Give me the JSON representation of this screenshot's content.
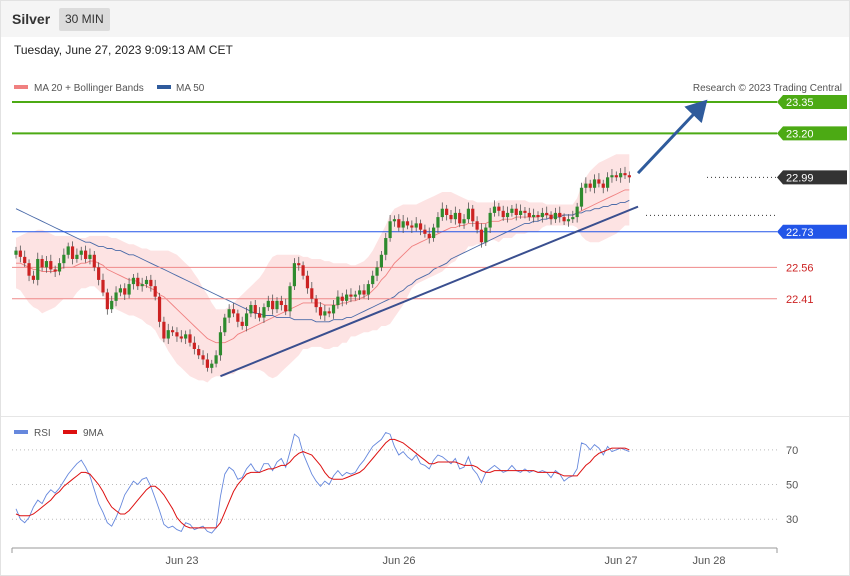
{
  "header": {
    "symbol": "Silver",
    "timeframe": "30 MIN",
    "datetime": "Tuesday, June 27, 2023 9:09:13 AM CET"
  },
  "colors": {
    "green_level": "#4caa14",
    "current_price": "#333333",
    "pivot": "#2255e8",
    "support": "#cc2222",
    "arrow": "#2f5b9c",
    "trendline": "#3a4f8f",
    "bollinger_fill": "#fde3e3",
    "ma20": "#f08080",
    "ma50": "#4a6aa8",
    "candle_up": "#2e8b2e",
    "candle_down": "#cc2222",
    "rsi": "#6688dd",
    "rsi_ma": "#dd1111"
  },
  "chart_data": [
    {
      "type": "candlestick",
      "title": "Silver",
      "legend": [
        {
          "name": "MA 20 + Bollinger Bands",
          "color": "#f08080"
        },
        {
          "name": "MA 50",
          "color": "#2f5b9c"
        }
      ],
      "legend_position": "top-left",
      "copyright": "Research © 2023 Trading Central",
      "ylim": [
        21.85,
        23.45
      ],
      "x_ticks": [
        "Jun 23",
        "Jun 26",
        "Jun 27",
        "Jun 28"
      ],
      "levels": [
        {
          "label": "23.35",
          "value": 23.35,
          "style": "green"
        },
        {
          "label": "23.20",
          "value": 23.2,
          "style": "green"
        },
        {
          "label": "22.99",
          "value": 22.99,
          "style": "current"
        },
        {
          "label": "22.73",
          "value": 22.73,
          "style": "pivot"
        },
        {
          "label": "22.56",
          "value": 22.56,
          "style": "support"
        },
        {
          "label": "22.41",
          "value": 22.41,
          "style": "support"
        }
      ],
      "close": [
        22.64,
        22.61,
        22.58,
        22.52,
        22.5,
        22.6,
        22.56,
        22.59,
        22.55,
        22.54,
        22.58,
        22.62,
        22.66,
        22.6,
        22.62,
        22.64,
        22.6,
        22.62,
        22.56,
        22.5,
        22.44,
        22.36,
        22.4,
        22.44,
        22.46,
        22.43,
        22.48,
        22.51,
        22.47,
        22.48,
        22.5,
        22.47,
        22.42,
        22.3,
        22.22,
        22.26,
        22.25,
        22.23,
        22.22,
        22.24,
        22.2,
        22.17,
        22.14,
        22.12,
        22.08,
        22.1,
        22.14,
        22.25,
        22.32,
        22.36,
        22.34,
        22.3,
        22.28,
        22.34,
        22.38,
        22.34,
        22.32,
        22.37,
        22.4,
        22.36,
        22.4,
        22.38,
        22.35,
        22.47,
        22.58,
        22.57,
        22.52,
        22.46,
        22.41,
        22.37,
        22.33,
        22.35,
        22.34,
        22.38,
        22.42,
        22.4,
        22.43,
        22.42,
        22.43,
        22.45,
        22.43,
        22.48,
        22.52,
        22.56,
        22.62,
        22.7,
        22.78,
        22.79,
        22.75,
        22.78,
        22.76,
        22.75,
        22.77,
        22.74,
        22.72,
        22.7,
        22.75,
        22.8,
        22.84,
        22.81,
        22.79,
        22.82,
        22.77,
        22.79,
        22.84,
        22.78,
        22.74,
        22.68,
        22.75,
        22.82,
        22.85,
        22.83,
        22.8,
        22.82,
        22.84,
        22.81,
        22.83,
        22.82,
        22.8,
        22.81,
        22.8,
        22.82,
        22.81,
        22.79,
        22.82,
        22.8,
        22.78,
        22.79,
        22.8,
        22.85,
        22.94,
        22.96,
        22.94,
        22.98,
        22.96,
        22.94,
        22.99,
        23.0,
        22.99,
        23.01,
        23.0,
        22.99
      ],
      "ma20": [
        22.58,
        22.58,
        22.57,
        22.56,
        22.55,
        22.55,
        22.54,
        22.54,
        22.54,
        22.54,
        22.55,
        22.56,
        22.56,
        22.56,
        22.57,
        22.58,
        22.58,
        22.59,
        22.59,
        22.58,
        22.57,
        22.55,
        22.54,
        22.53,
        22.52,
        22.51,
        22.5,
        22.5,
        22.49,
        22.48,
        22.47,
        22.46,
        22.45,
        22.43,
        22.42,
        22.4,
        22.38,
        22.36,
        22.34,
        22.32,
        22.3,
        22.28,
        22.26,
        22.24,
        22.22,
        22.21,
        22.2,
        22.2,
        22.2,
        22.21,
        22.22,
        22.24,
        22.25,
        22.26,
        22.27,
        22.28,
        22.29,
        22.3,
        22.31,
        22.32,
        22.33,
        22.34,
        22.35,
        22.36,
        22.37,
        22.38,
        22.39,
        22.39,
        22.39,
        22.39,
        22.39,
        22.38,
        22.38,
        22.38,
        22.38,
        22.39,
        22.39,
        22.4,
        22.4,
        22.41,
        22.42,
        22.43,
        22.45,
        22.47,
        22.5,
        22.52,
        22.55,
        22.58,
        22.6,
        22.62,
        22.64,
        22.66,
        22.67,
        22.68,
        22.69,
        22.7,
        22.71,
        22.72,
        22.73,
        22.74,
        22.75,
        22.75,
        22.76,
        22.76,
        22.77,
        22.77,
        22.77,
        22.77,
        22.77,
        22.78,
        22.78,
        22.78,
        22.79,
        22.79,
        22.79,
        22.8,
        22.8,
        22.8,
        22.8,
        22.8,
        22.8,
        22.81,
        22.81,
        22.81,
        22.81,
        22.81,
        22.81,
        22.81,
        22.81,
        22.82,
        22.83,
        22.84,
        22.85,
        22.86,
        22.87,
        22.88,
        22.89,
        22.9,
        22.91,
        22.92,
        22.93,
        22.93
      ],
      "bb_upper": [
        22.7,
        22.71,
        22.72,
        22.73,
        22.73,
        22.74,
        22.74,
        22.73,
        22.72,
        22.71,
        22.71,
        22.71,
        22.71,
        22.71,
        22.7,
        22.7,
        22.7,
        22.71,
        22.71,
        22.71,
        22.71,
        22.71,
        22.7,
        22.7,
        22.69,
        22.68,
        22.67,
        22.67,
        22.66,
        22.65,
        22.65,
        22.64,
        22.64,
        22.64,
        22.64,
        22.64,
        22.63,
        22.62,
        22.6,
        22.58,
        22.56,
        22.53,
        22.5,
        22.46,
        22.43,
        22.39,
        22.36,
        22.36,
        22.36,
        22.37,
        22.39,
        22.41,
        22.43,
        22.45,
        22.47,
        22.49,
        22.51,
        22.54,
        22.58,
        22.61,
        22.62,
        22.62,
        22.62,
        22.62,
        22.62,
        22.62,
        22.61,
        22.61,
        22.6,
        22.6,
        22.6,
        22.59,
        22.59,
        22.58,
        22.58,
        22.58,
        22.58,
        22.57,
        22.57,
        22.58,
        22.59,
        22.61,
        22.64,
        22.68,
        22.72,
        22.76,
        22.81,
        22.84,
        22.85,
        22.86,
        22.86,
        22.86,
        22.86,
        22.87,
        22.88,
        22.89,
        22.9,
        22.91,
        22.92,
        22.92,
        22.92,
        22.91,
        22.9,
        22.89,
        22.88,
        22.88,
        22.87,
        22.87,
        22.87,
        22.87,
        22.87,
        22.88,
        22.88,
        22.88,
        22.88,
        22.88,
        22.88,
        22.88,
        22.87,
        22.87,
        22.87,
        22.87,
        22.86,
        22.86,
        22.86,
        22.86,
        22.86,
        22.86,
        22.86,
        22.89,
        22.95,
        22.99,
        23.02,
        23.04,
        23.06,
        23.07,
        23.08,
        23.09,
        23.1,
        23.1,
        23.1,
        23.1
      ],
      "bb_lower": [
        22.46,
        22.45,
        22.42,
        22.39,
        22.37,
        22.36,
        22.34,
        22.35,
        22.36,
        22.37,
        22.39,
        22.41,
        22.41,
        22.41,
        22.44,
        22.46,
        22.46,
        22.47,
        22.47,
        22.45,
        22.43,
        22.39,
        22.38,
        22.36,
        22.35,
        22.34,
        22.33,
        22.33,
        22.32,
        22.31,
        22.29,
        22.28,
        22.26,
        22.22,
        22.2,
        22.16,
        22.13,
        22.1,
        22.08,
        22.06,
        22.04,
        22.03,
        22.02,
        22.02,
        22.01,
        22.03,
        22.04,
        22.04,
        22.04,
        22.05,
        22.05,
        22.07,
        22.07,
        22.07,
        22.07,
        22.07,
        22.07,
        22.06,
        22.04,
        22.03,
        22.04,
        22.06,
        22.08,
        22.1,
        22.12,
        22.14,
        22.17,
        22.17,
        22.18,
        22.18,
        22.18,
        22.17,
        22.17,
        22.18,
        22.18,
        22.2,
        22.2,
        22.23,
        22.23,
        22.24,
        22.25,
        22.25,
        22.26,
        22.26,
        22.28,
        22.28,
        22.29,
        22.32,
        22.35,
        22.38,
        22.42,
        22.46,
        22.48,
        22.49,
        22.5,
        22.51,
        22.52,
        22.53,
        22.54,
        22.56,
        22.58,
        22.59,
        22.62,
        22.63,
        22.66,
        22.66,
        22.67,
        22.67,
        22.67,
        22.69,
        22.69,
        22.68,
        22.7,
        22.7,
        22.7,
        22.72,
        22.72,
        22.72,
        22.73,
        22.73,
        22.73,
        22.75,
        22.76,
        22.76,
        22.76,
        22.76,
        22.76,
        22.76,
        22.76,
        22.75,
        22.71,
        22.69,
        22.68,
        22.68,
        22.68,
        22.69,
        22.7,
        22.71,
        22.72,
        22.74,
        22.76,
        22.76
      ],
      "ma50": [
        22.84,
        22.83,
        22.82,
        22.81,
        22.8,
        22.79,
        22.78,
        22.77,
        22.76,
        22.75,
        22.74,
        22.73,
        22.72,
        22.71,
        22.7,
        22.69,
        22.68,
        22.68,
        22.67,
        22.66,
        22.66,
        22.65,
        22.65,
        22.64,
        22.64,
        22.63,
        22.62,
        22.62,
        22.61,
        22.6,
        22.59,
        22.58,
        22.57,
        22.56,
        22.55,
        22.54,
        22.53,
        22.52,
        22.51,
        22.5,
        22.49,
        22.48,
        22.47,
        22.46,
        22.45,
        22.44,
        22.43,
        22.42,
        22.41,
        22.4,
        22.39,
        22.38,
        22.37,
        22.36,
        22.35,
        22.34,
        22.34,
        22.33,
        22.33,
        22.33,
        22.32,
        22.32,
        22.32,
        22.32,
        22.31,
        22.31,
        22.31,
        22.31,
        22.31,
        22.3,
        22.3,
        22.3,
        22.3,
        22.31,
        22.31,
        22.31,
        22.32,
        22.32,
        22.33,
        22.34,
        22.35,
        22.36,
        22.37,
        22.38,
        22.39,
        22.4,
        22.41,
        22.42,
        22.44,
        22.45,
        22.47,
        22.48,
        22.5,
        22.51,
        22.52,
        22.53,
        22.55,
        22.56,
        22.57,
        22.58,
        22.6,
        22.61,
        22.62,
        22.63,
        22.64,
        22.65,
        22.66,
        22.67,
        22.68,
        22.69,
        22.7,
        22.71,
        22.72,
        22.73,
        22.74,
        22.75,
        22.76,
        22.77,
        22.77,
        22.78,
        22.78,
        22.79,
        22.79,
        22.8,
        22.8,
        22.8,
        22.81,
        22.81,
        22.81,
        22.82,
        22.82,
        22.83,
        22.83,
        22.84,
        22.84,
        22.85,
        22.85,
        22.86,
        22.86,
        22.87,
        22.87,
        22.88
      ],
      "trendline": [
        {
          "i": 47,
          "value": 22.04
        },
        {
          "i": 143,
          "value": 22.85
        }
      ],
      "arrow": [
        {
          "i": 143,
          "value": 23.01
        },
        {
          "i": 158,
          "value": 23.34
        }
      ]
    },
    {
      "type": "line",
      "legend": [
        {
          "name": "RSI",
          "color": "#6688dd"
        },
        {
          "name": "9MA",
          "color": "#dd1111"
        }
      ],
      "legend_position": "top-left",
      "ylim": [
        14,
        82
      ],
      "y_ticks": [
        70,
        50,
        30
      ],
      "rsi": [
        36,
        30,
        28,
        31,
        37,
        41,
        39,
        44,
        47,
        45,
        48,
        52,
        56,
        59,
        62,
        64,
        60,
        55,
        47,
        39,
        34,
        28,
        26,
        31,
        37,
        44,
        48,
        52,
        50,
        53,
        54,
        49,
        42,
        35,
        27,
        25,
        26,
        24,
        23,
        28,
        27,
        24,
        25,
        26,
        23,
        22,
        25,
        43,
        56,
        60,
        58,
        53,
        54,
        59,
        62,
        58,
        57,
        62,
        62,
        58,
        63,
        65,
        60,
        69,
        79,
        77,
        68,
        62,
        56,
        52,
        49,
        52,
        50,
        55,
        58,
        55,
        57,
        56,
        57,
        61,
        64,
        68,
        72,
        74,
        76,
        80,
        79,
        72,
        67,
        69,
        66,
        64,
        67,
        62,
        61,
        59,
        64,
        67,
        66,
        64,
        62,
        65,
        59,
        60,
        66,
        59,
        56,
        51,
        57,
        59,
        61,
        59,
        57,
        58,
        61,
        58,
        57,
        59,
        57,
        58,
        57,
        58,
        57,
        54,
        58,
        56,
        52,
        54,
        55,
        59,
        74,
        73,
        70,
        73,
        71,
        67,
        72,
        69,
        70,
        71,
        70,
        69
      ],
      "rsi_ma": [
        33,
        32,
        32,
        32,
        33,
        35,
        37,
        39,
        41,
        44,
        46,
        49,
        51,
        53,
        55,
        57,
        57,
        56,
        53,
        50,
        46,
        41,
        37,
        35,
        33,
        33,
        35,
        38,
        41,
        44,
        47,
        49,
        49,
        47,
        44,
        40,
        36,
        31,
        28,
        26,
        25,
        25,
        25,
        25,
        25,
        25,
        25,
        28,
        34,
        40,
        46,
        50,
        53,
        56,
        57,
        57,
        57,
        58,
        59,
        59,
        60,
        61,
        61,
        63,
        66,
        68,
        69,
        68,
        67,
        64,
        61,
        57,
        54,
        53,
        53,
        53,
        54,
        55,
        56,
        57,
        59,
        62,
        65,
        68,
        71,
        74,
        76,
        76,
        75,
        74,
        72,
        70,
        68,
        66,
        64,
        62,
        62,
        63,
        63,
        63,
        63,
        63,
        62,
        61,
        61,
        61,
        60,
        58,
        57,
        57,
        58,
        58,
        58,
        58,
        58,
        58,
        58,
        58,
        58,
        58,
        57,
        57,
        57,
        57,
        57,
        56,
        55,
        55,
        55,
        55,
        58,
        61,
        63,
        66,
        68,
        69,
        70,
        71,
        71,
        71,
        71,
        70
      ]
    }
  ]
}
